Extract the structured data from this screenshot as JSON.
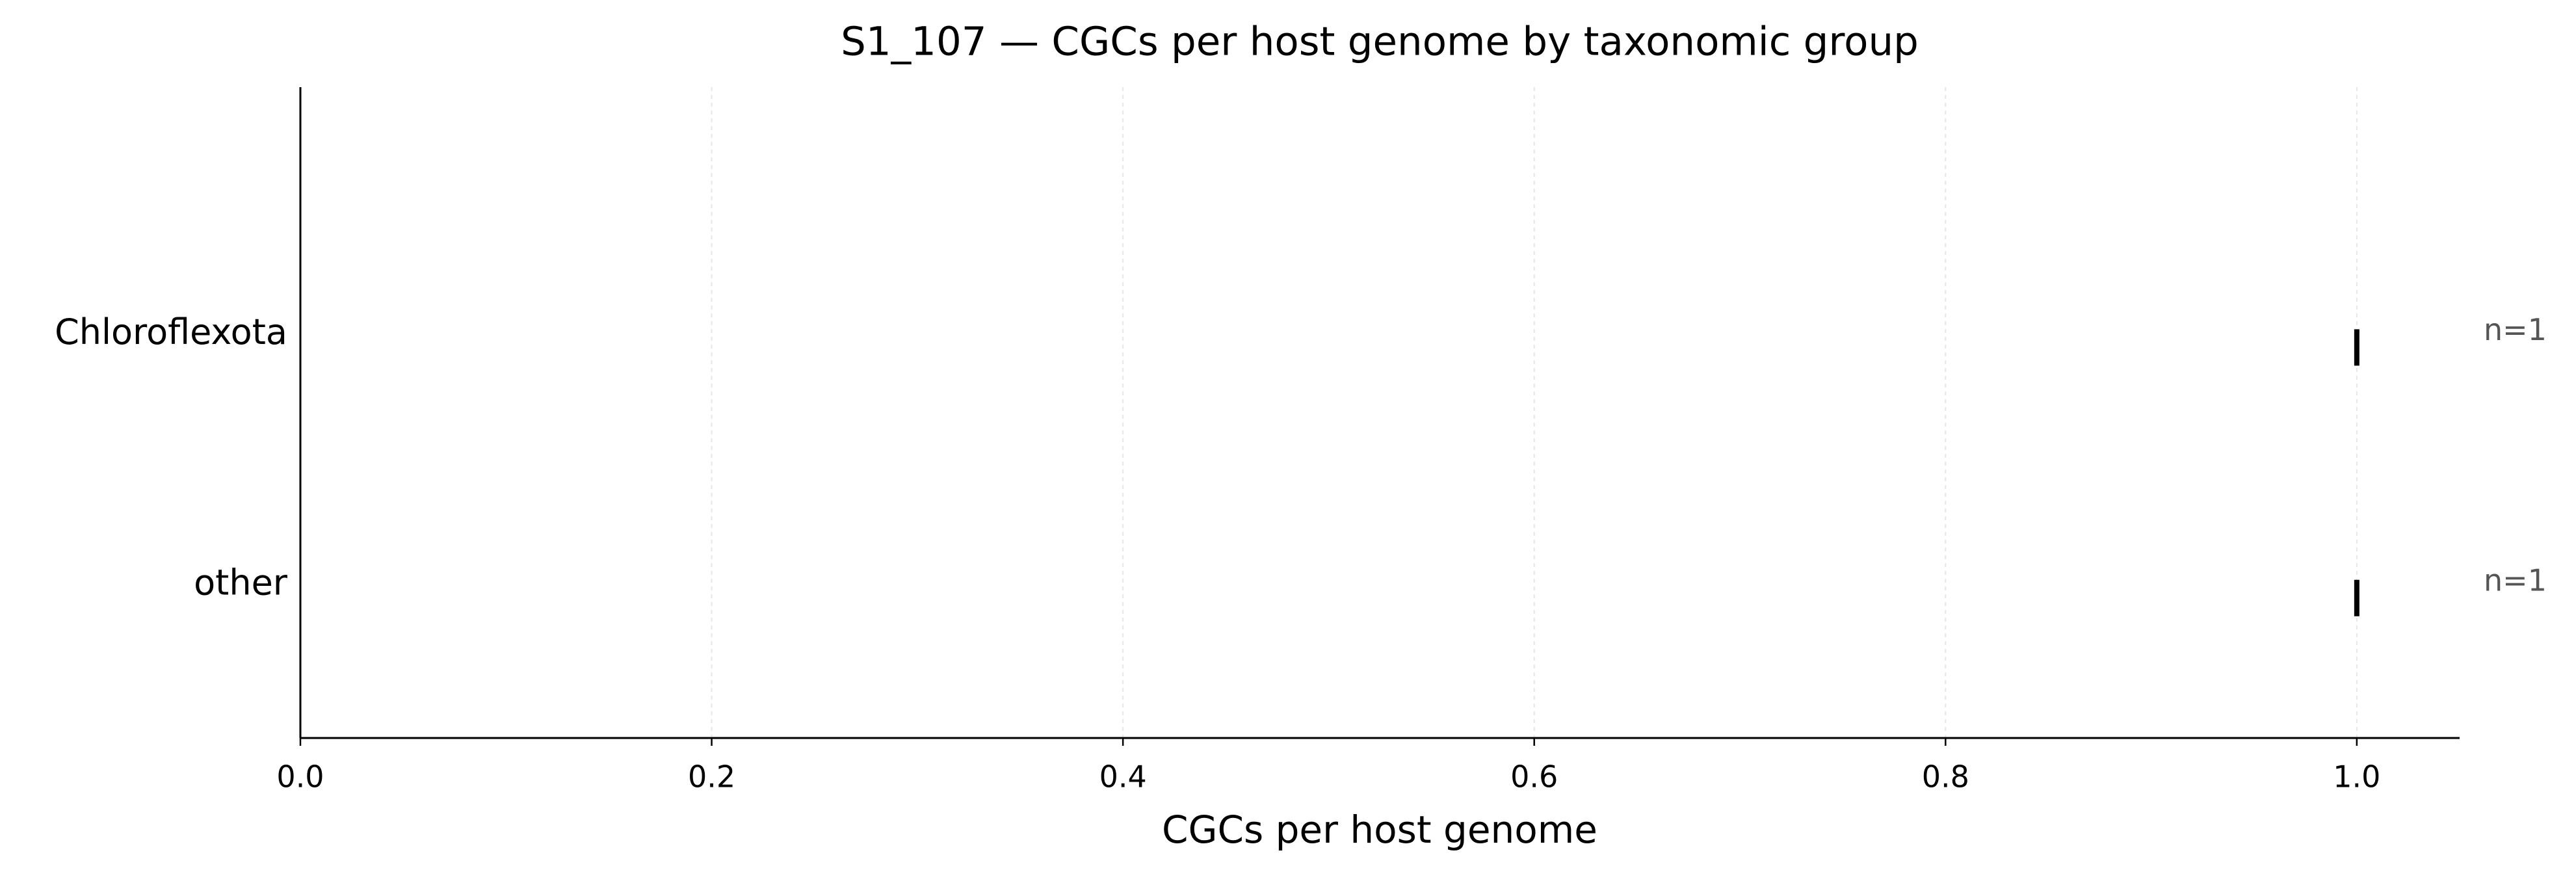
{
  "chart_data": {
    "type": "strip",
    "title": "S1_107 — CGCs per host genome by taxonomic group",
    "x_label": "CGCs per host genome",
    "categories": [
      "Chloroflexota",
      "other"
    ],
    "values": [
      1,
      1
    ],
    "annotations": [
      "n=1",
      "n=1"
    ],
    "color": "#000000",
    "xlim": [
      0,
      1.05
    ],
    "xticks": [
      {
        "value": 0,
        "label": "0.0"
      },
      {
        "value": 0.2,
        "label": "0.2"
      },
      {
        "value": 0.4,
        "label": "0.4"
      },
      {
        "value": 0.6,
        "label": "0.6"
      },
      {
        "value": 0.8,
        "label": "0.8"
      },
      {
        "value": 1,
        "label": "1.0"
      }
    ],
    "grid": true
  }
}
